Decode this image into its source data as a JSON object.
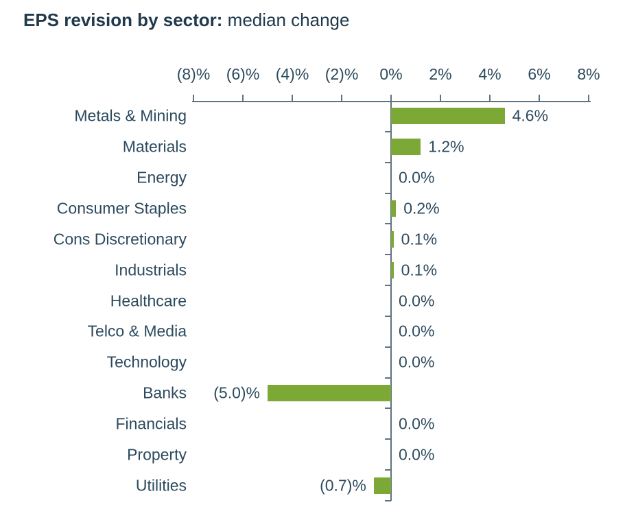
{
  "title": {
    "bold": "EPS revision by sector:",
    "normal": " median change"
  },
  "chart_data": {
    "type": "bar",
    "orientation": "horizontal",
    "title": "EPS revision by sector: median change",
    "xlabel": "",
    "ylabel": "",
    "x_axis": {
      "position": "top",
      "range": [
        -8,
        8
      ],
      "tick_values": [
        -8,
        -6,
        -4,
        -2,
        0,
        2,
        4,
        6,
        8
      ],
      "tick_labels": [
        "(8)%",
        "(6)%",
        "(4)%",
        "(2)%",
        "0%",
        "2%",
        "4%",
        "6%",
        "8%"
      ]
    },
    "categories": [
      "Metals & Mining",
      "Materials",
      "Energy",
      "Consumer Staples",
      "Cons Discretionary",
      "Industrials",
      "Healthcare",
      "Telco & Media",
      "Technology",
      "Banks",
      "Financials",
      "Property",
      "Utilities"
    ],
    "values": [
      4.6,
      1.2,
      0.0,
      0.2,
      0.1,
      0.1,
      0.0,
      0.0,
      0.0,
      -5.0,
      0.0,
      0.0,
      -0.7
    ],
    "value_labels": [
      "4.6%",
      "1.2%",
      "0.0%",
      "0.2%",
      "0.1%",
      "0.1%",
      "0.0%",
      "0.0%",
      "0.0%",
      "(5.0)%",
      "0.0%",
      "0.0%",
      "(0.7)%"
    ],
    "legend": null,
    "grid": false,
    "colors": {
      "bar": "#7ca935",
      "text": "#2c4a5e",
      "title_text": "#21394b",
      "axis": "#5f7280",
      "background": "#ffffff"
    }
  }
}
